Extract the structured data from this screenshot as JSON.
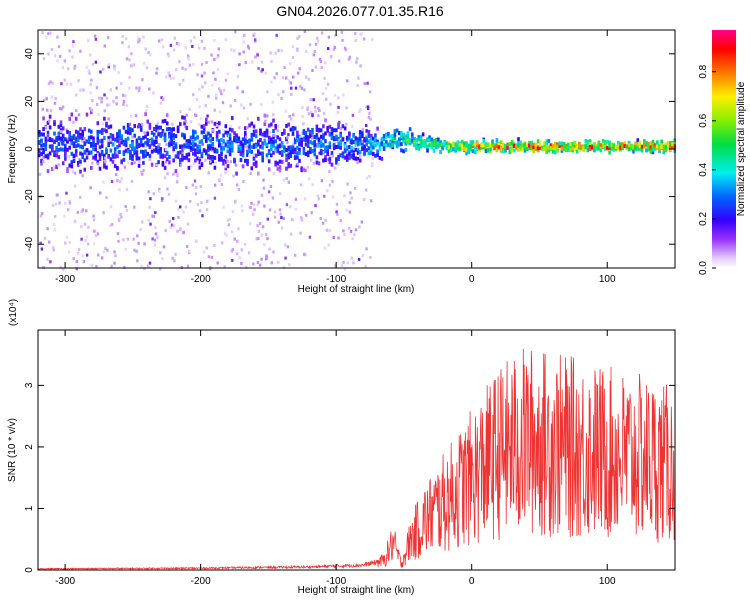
{
  "title": "GN04.2026.077.01.35.R16",
  "chart_data": [
    {
      "type": "heatmap",
      "xlabel": "Height of straight line (km)",
      "ylabel": "Frequency (Hz)",
      "xlim": [
        -320,
        150
      ],
      "ylim": [
        -50,
        50
      ],
      "xticks": [
        -300,
        -200,
        -100,
        0,
        100
      ],
      "yticks": [
        -40,
        -20,
        0,
        20,
        40
      ],
      "colorbar": {
        "label": "Normalized spectral amplitude",
        "range": [
          0,
          0.97
        ],
        "ticks": [
          0.0,
          0.2,
          0.4,
          0.6,
          0.8
        ]
      },
      "ridge": [
        {
          "x": -320,
          "center": 2,
          "spread": 14,
          "amp": 0.3
        },
        {
          "x": -250,
          "center": 2,
          "spread": 14,
          "amp": 0.32
        },
        {
          "x": -150,
          "center": 2,
          "spread": 13,
          "amp": 0.33
        },
        {
          "x": -100,
          "center": 2,
          "spread": 12,
          "amp": 0.35
        },
        {
          "x": -75,
          "center": 2,
          "spread": 8,
          "amp": 0.4
        },
        {
          "x": -50,
          "center": 4,
          "spread": 6,
          "amp": 0.55
        },
        {
          "x": -30,
          "center": 2,
          "spread": 4,
          "amp": 0.6
        },
        {
          "x": -10,
          "center": 1,
          "spread": 3,
          "amp": 0.8
        },
        {
          "x": 20,
          "center": 1,
          "spread": 3,
          "amp": 0.92
        },
        {
          "x": 60,
          "center": 1,
          "spread": 3,
          "amp": 0.9
        },
        {
          "x": 100,
          "center": 1,
          "spread": 3,
          "amp": 0.88
        },
        {
          "x": 150,
          "center": 1,
          "spread": 3,
          "amp": 0.85
        }
      ],
      "scatter_until": -75
    },
    {
      "type": "line",
      "xlabel": "Height of straight line (km)",
      "ylabel": "SNR (10 * v/v)",
      "y_multiplier": "(x10⁴)",
      "xlim": [
        -320,
        150
      ],
      "ylim": [
        0,
        3.9
      ],
      "xticks": [
        -300,
        -200,
        -100,
        0,
        100
      ],
      "yticks": [
        0,
        1,
        2,
        3
      ],
      "color": "#ee3333",
      "envelope": [
        {
          "x": -320,
          "y": 0.02
        },
        {
          "x": -200,
          "y": 0.03
        },
        {
          "x": -120,
          "y": 0.05
        },
        {
          "x": -80,
          "y": 0.08
        },
        {
          "x": -65,
          "y": 0.15
        },
        {
          "x": -58,
          "y": 0.45
        },
        {
          "x": -52,
          "y": 0.1
        },
        {
          "x": -45,
          "y": 0.5
        },
        {
          "x": -35,
          "y": 0.8
        },
        {
          "x": -20,
          "y": 1.1
        },
        {
          "x": 0,
          "y": 1.5
        },
        {
          "x": 20,
          "y": 1.9
        },
        {
          "x": 40,
          "y": 2.1
        },
        {
          "x": 70,
          "y": 2.0
        },
        {
          "x": 100,
          "y": 1.9
        },
        {
          "x": 130,
          "y": 1.8
        },
        {
          "x": 150,
          "y": 1.7
        }
      ]
    }
  ]
}
